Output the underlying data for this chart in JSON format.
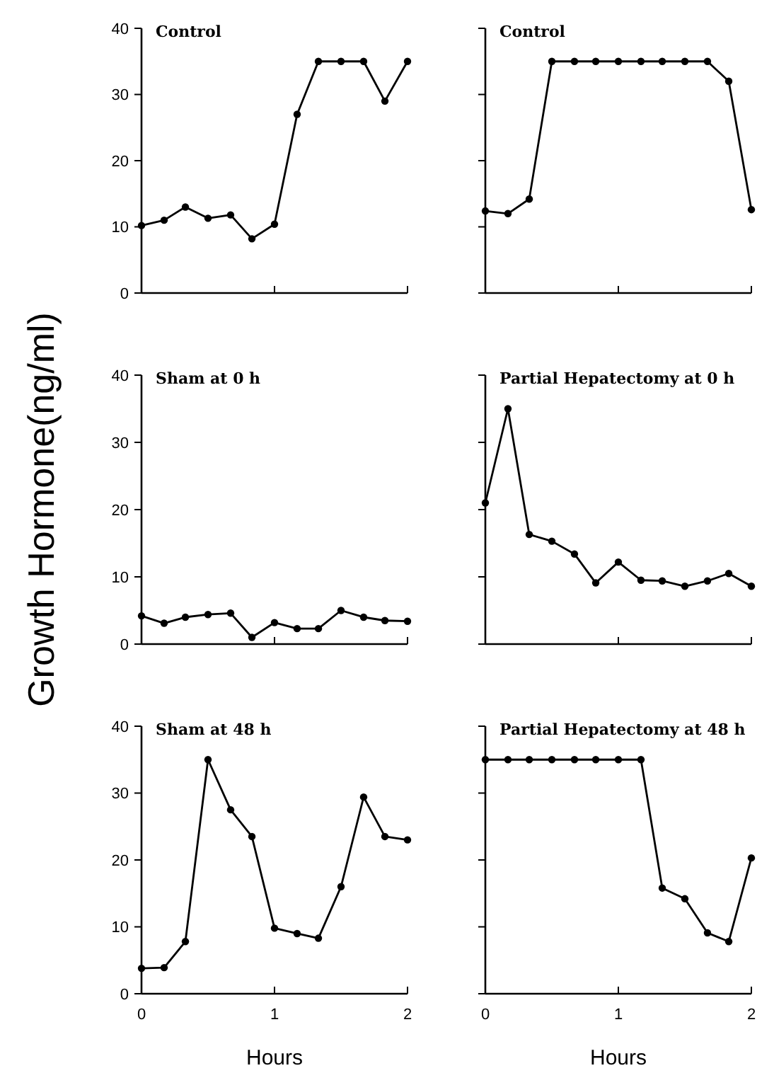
{
  "chart_data": [
    {
      "type": "line",
      "title": "Control",
      "x": [
        0,
        0.17,
        0.33,
        0.5,
        0.67,
        0.83,
        1,
        1.17,
        1.33,
        1.5,
        1.67,
        1.83,
        2
      ],
      "values": [
        10.2,
        11,
        13,
        11.3,
        11.8,
        8.2,
        10.4,
        27,
        35,
        35,
        35,
        29,
        35
      ],
      "color": "#000000",
      "xlim": [
        0,
        2
      ],
      "ylim": [
        0,
        40
      ],
      "xticks": [
        0,
        1,
        2
      ],
      "yticks": [
        0,
        10,
        20,
        30,
        40
      ],
      "tick_labels": "y",
      "marker": "circle",
      "line_style": "solid"
    },
    {
      "type": "line",
      "title": "Control",
      "x": [
        0,
        0.17,
        0.33,
        0.5,
        0.67,
        0.83,
        1,
        1.17,
        1.33,
        1.5,
        1.67,
        1.83,
        2
      ],
      "values": [
        12.4,
        12,
        14.2,
        35,
        35,
        35,
        35,
        35,
        35,
        35,
        35,
        32,
        12.6
      ],
      "color": "#000000",
      "xlim": [
        0,
        2
      ],
      "ylim": [
        0,
        40
      ],
      "xticks": [
        0,
        1,
        2
      ],
      "yticks": [
        0,
        10,
        20,
        30,
        40
      ],
      "tick_labels": false,
      "marker": "circle",
      "line_style": "solid"
    },
    {
      "type": "line",
      "title": "Sham at 0 h",
      "ylabel": "Growth Hormone(ng/ml)",
      "x": [
        0,
        0.17,
        0.33,
        0.5,
        0.67,
        0.83,
        1,
        1.17,
        1.33,
        1.5,
        1.67,
        1.83,
        2
      ],
      "values": [
        4.2,
        3.1,
        4,
        4.4,
        4.6,
        1,
        3.2,
        2.3,
        2.3,
        5,
        4,
        3.5,
        3.4
      ],
      "color": "#000000",
      "xlim": [
        0,
        2
      ],
      "ylim": [
        0,
        40
      ],
      "xticks": [
        0,
        1,
        2
      ],
      "yticks": [
        0,
        10,
        20,
        30,
        40
      ],
      "tick_labels": "y",
      "marker": "circle",
      "line_style": "solid"
    },
    {
      "type": "line",
      "title": "Partial Hepatectomy at 0 h",
      "x": [
        0,
        0.17,
        0.33,
        0.5,
        0.67,
        0.83,
        1,
        1.17,
        1.33,
        1.5,
        1.67,
        1.83,
        2
      ],
      "values": [
        21,
        35,
        16.3,
        15.3,
        13.4,
        9.1,
        12.2,
        9.5,
        9.4,
        8.6,
        9.4,
        10.5,
        8.6
      ],
      "color": "#000000",
      "xlim": [
        0,
        2
      ],
      "ylim": [
        0,
        40
      ],
      "xticks": [
        0,
        1,
        2
      ],
      "yticks": [
        0,
        10,
        20,
        30,
        40
      ],
      "tick_labels": false,
      "marker": "circle",
      "line_style": "solid"
    },
    {
      "type": "line",
      "title": "Sham at 48 h",
      "xlabel": "Hours",
      "x": [
        0,
        0.17,
        0.33,
        0.5,
        0.67,
        0.83,
        1,
        1.17,
        1.33,
        1.5,
        1.67,
        1.83,
        2
      ],
      "values": [
        3.8,
        3.9,
        7.8,
        35,
        27.5,
        23.5,
        9.8,
        9,
        8.3,
        16,
        29.4,
        23.5,
        23
      ],
      "color": "#000000",
      "xlim": [
        0,
        2
      ],
      "ylim": [
        0,
        40
      ],
      "xticks": [
        0,
        1,
        2
      ],
      "yticks": [
        0,
        10,
        20,
        30,
        40
      ],
      "marker": "circle",
      "line_style": "solid"
    },
    {
      "type": "line",
      "title": "Partial Hepatectomy at 48 h",
      "xlabel": "Hours",
      "x": [
        0,
        0.17,
        0.33,
        0.5,
        0.67,
        0.83,
        1,
        1.17,
        1.33,
        1.5,
        1.67,
        1.83,
        2
      ],
      "values": [
        35,
        35,
        35,
        35,
        35,
        35,
        35,
        35,
        15.8,
        14.2,
        9.1,
        7.8,
        20.3
      ],
      "color": "#000000",
      "xlim": [
        0,
        2
      ],
      "ylim": [
        0,
        40
      ],
      "xticks": [
        0,
        1,
        2
      ],
      "yticks": [
        0,
        10,
        20,
        30,
        40
      ],
      "tick_labels": "x",
      "marker": "circle",
      "line_style": "solid"
    }
  ]
}
